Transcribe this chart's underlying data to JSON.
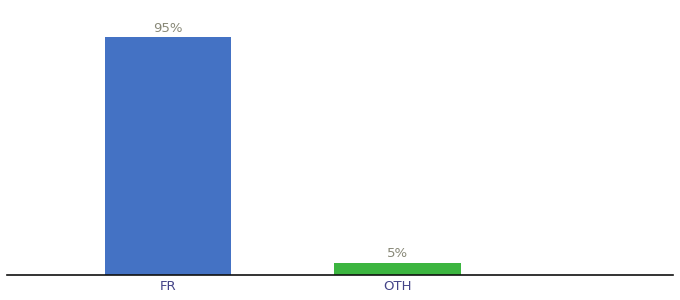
{
  "categories": [
    "FR",
    "OTH"
  ],
  "values": [
    95,
    5
  ],
  "bar_colors": [
    "#4472c4",
    "#3cb540"
  ],
  "bar_labels": [
    "95%",
    "5%"
  ],
  "background_color": "#ffffff",
  "axis_line_color": "#111111",
  "label_fontsize": 9.5,
  "tick_fontsize": 9.5,
  "ylim": [
    0,
    107
  ],
  "bar_width": 0.55,
  "x_positions": [
    1.0,
    2.0
  ],
  "xlim": [
    0.3,
    3.2
  ],
  "label_color": "#888877"
}
